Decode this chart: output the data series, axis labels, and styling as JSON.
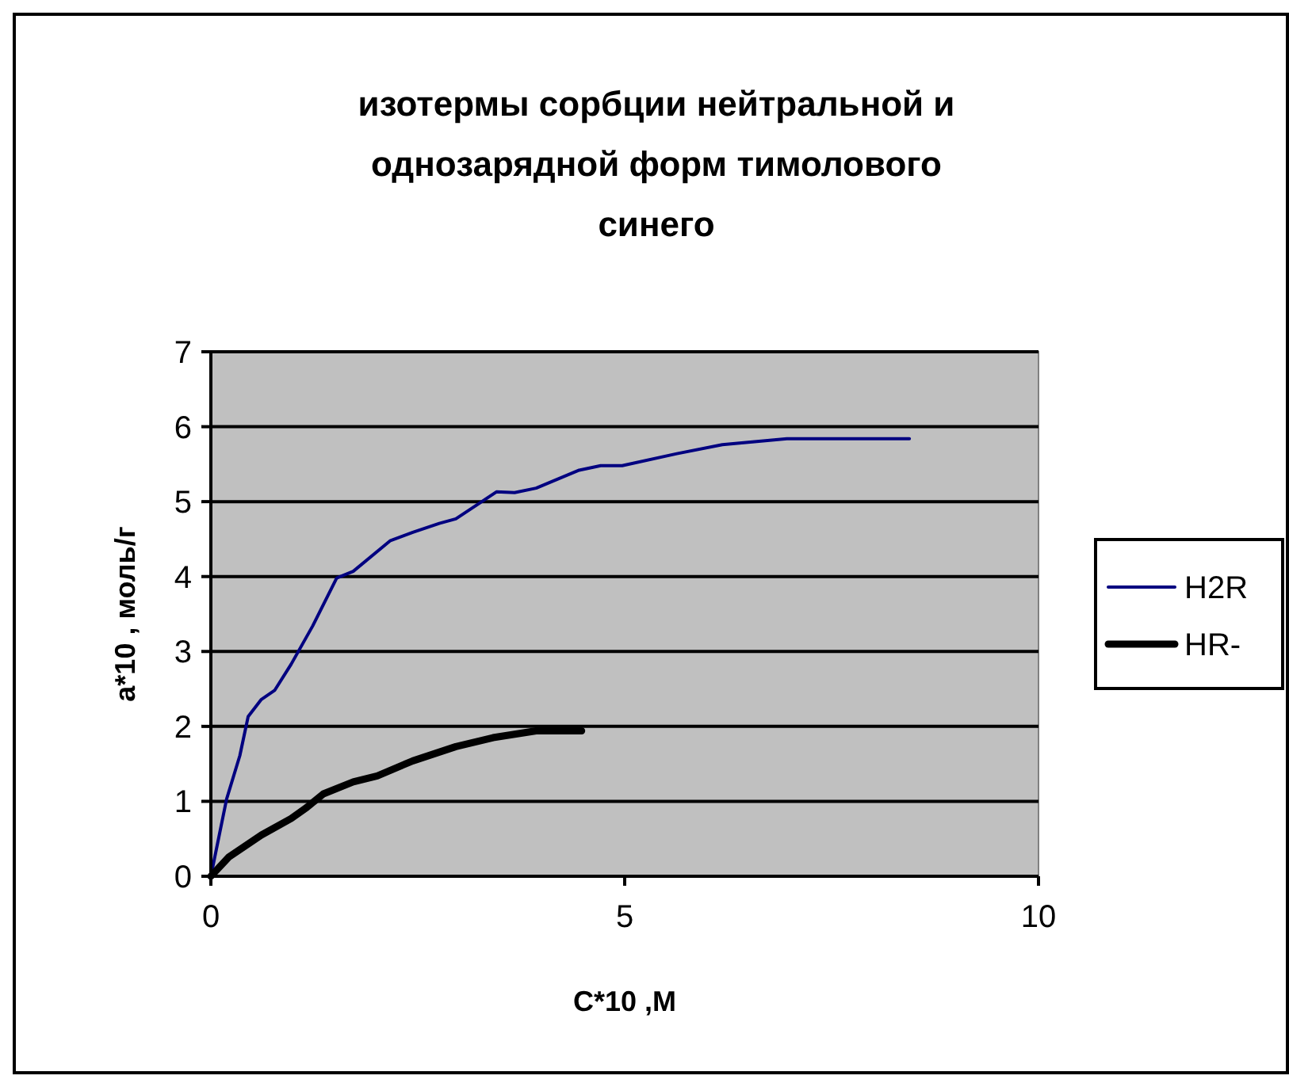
{
  "chart_data": {
    "type": "line",
    "title": "изотермы сорбции нейтральной и однозарядной форм тимолового синего",
    "xlabel": "C*10  ,M",
    "ylabel": "a*10  , моль/г",
    "xlim": [
      0,
      10
    ],
    "xticks": [
      0,
      5,
      10
    ],
    "ylim": [
      0,
      7
    ],
    "yticks": [
      0,
      1,
      2,
      3,
      4,
      5,
      6,
      7
    ],
    "grid": "y",
    "legend": "right",
    "marker": "none",
    "line_style": "solid",
    "series": [
      {
        "name": "H2R",
        "color": "#000080",
        "x": [
          0,
          0.19,
          0.35,
          0.45,
          0.61,
          0.77,
          0.97,
          1.23,
          1.52,
          1.72,
          2.17,
          2.44,
          2.76,
          2.96,
          3.22,
          3.45,
          3.67,
          3.93,
          4.45,
          4.71,
          4.97,
          5.63,
          6.18,
          6.96,
          8.44
        ],
        "values": [
          0,
          1.03,
          1.61,
          2.13,
          2.36,
          2.48,
          2.83,
          3.34,
          3.98,
          4.07,
          4.48,
          4.59,
          4.71,
          4.77,
          4.96,
          5.13,
          5.12,
          5.18,
          5.42,
          5.48,
          5.48,
          5.64,
          5.76,
          5.84,
          5.84
        ]
      },
      {
        "name": "HR-",
        "color": "#000000",
        "x": [
          0,
          0.22,
          0.61,
          0.97,
          1.16,
          1.36,
          1.72,
          2.01,
          2.44,
          2.96,
          3.41,
          3.93,
          4.48
        ],
        "values": [
          0,
          0.26,
          0.55,
          0.77,
          0.92,
          1.1,
          1.26,
          1.34,
          1.54,
          1.73,
          1.85,
          1.94,
          1.94
        ]
      }
    ]
  }
}
